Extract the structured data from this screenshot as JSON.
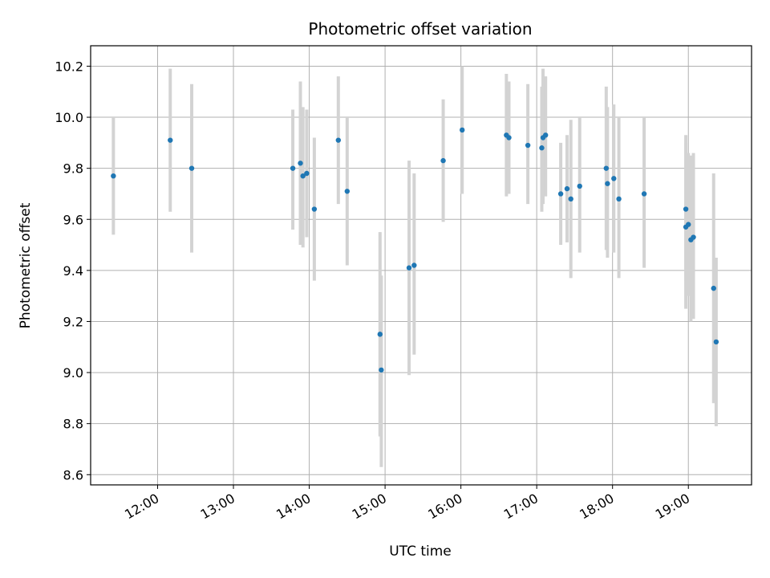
{
  "chart_data": {
    "type": "scatter",
    "title": "Photometric offset variation",
    "xlabel": "UTC time",
    "ylabel": "Photometric offset",
    "x_ticks": [
      "12:00",
      "13:00",
      "14:00",
      "15:00",
      "16:00",
      "17:00",
      "18:00",
      "19:00"
    ],
    "y_ticks": [
      "8.6",
      "8.8",
      "9.0",
      "9.2",
      "9.4",
      "9.6",
      "9.8",
      "10.0",
      "10.2"
    ],
    "xlim": [
      "11:07",
      "19:50"
    ],
    "ylim": [
      8.56,
      10.28
    ],
    "grid": true,
    "colors": {
      "point": "#1f77b4",
      "errorbar": "#d3d3d3",
      "grid": "#b0b0b0"
    },
    "points": [
      {
        "t": "11:25",
        "y": 9.77,
        "lo": 9.54,
        "hi": 10.0
      },
      {
        "t": "12:10",
        "y": 9.91,
        "lo": 9.63,
        "hi": 10.19
      },
      {
        "t": "12:27",
        "y": 9.8,
        "lo": 9.47,
        "hi": 10.13
      },
      {
        "t": "13:47",
        "y": 9.8,
        "lo": 9.56,
        "hi": 10.03
      },
      {
        "t": "13:53",
        "y": 9.82,
        "lo": 9.5,
        "hi": 10.14
      },
      {
        "t": "13:55",
        "y": 9.77,
        "lo": 9.49,
        "hi": 10.04
      },
      {
        "t": "13:58",
        "y": 9.78,
        "lo": 9.53,
        "hi": 10.03
      },
      {
        "t": "14:04",
        "y": 9.64,
        "lo": 9.36,
        "hi": 9.92
      },
      {
        "t": "14:23",
        "y": 9.91,
        "lo": 9.66,
        "hi": 10.16
      },
      {
        "t": "14:30",
        "y": 9.71,
        "lo": 9.42,
        "hi": 10.0
      },
      {
        "t": "14:56",
        "y": 9.15,
        "lo": 8.75,
        "hi": 9.55
      },
      {
        "t": "14:57",
        "y": 9.01,
        "lo": 8.63,
        "hi": 9.38
      },
      {
        "t": "15:19",
        "y": 9.41,
        "lo": 8.99,
        "hi": 9.83
      },
      {
        "t": "15:23",
        "y": 9.42,
        "lo": 9.07,
        "hi": 9.78
      },
      {
        "t": "15:46",
        "y": 9.83,
        "lo": 9.59,
        "hi": 10.07
      },
      {
        "t": "16:01",
        "y": 9.95,
        "lo": 9.7,
        "hi": 10.2
      },
      {
        "t": "16:36",
        "y": 9.93,
        "lo": 9.69,
        "hi": 10.17
      },
      {
        "t": "16:38",
        "y": 9.92,
        "lo": 9.7,
        "hi": 10.14
      },
      {
        "t": "16:53",
        "y": 9.89,
        "lo": 9.66,
        "hi": 10.13
      },
      {
        "t": "17:04",
        "y": 9.88,
        "lo": 9.63,
        "hi": 10.12
      },
      {
        "t": "17:05",
        "y": 9.92,
        "lo": 9.66,
        "hi": 10.19
      },
      {
        "t": "17:07",
        "y": 9.93,
        "lo": 9.69,
        "hi": 10.16
      },
      {
        "t": "17:19",
        "y": 9.7,
        "lo": 9.5,
        "hi": 9.9
      },
      {
        "t": "17:24",
        "y": 9.72,
        "lo": 9.51,
        "hi": 9.93
      },
      {
        "t": "17:27",
        "y": 9.68,
        "lo": 9.37,
        "hi": 9.99
      },
      {
        "t": "17:34",
        "y": 9.73,
        "lo": 9.47,
        "hi": 10.0
      },
      {
        "t": "17:55",
        "y": 9.8,
        "lo": 9.48,
        "hi": 10.12
      },
      {
        "t": "17:56",
        "y": 9.74,
        "lo": 9.45,
        "hi": 10.04
      },
      {
        "t": "18:01",
        "y": 9.76,
        "lo": 9.47,
        "hi": 10.05
      },
      {
        "t": "18:05",
        "y": 9.68,
        "lo": 9.37,
        "hi": 10.0
      },
      {
        "t": "18:25",
        "y": 9.7,
        "lo": 9.41,
        "hi": 10.0
      },
      {
        "t": "18:58",
        "y": 9.64,
        "lo": 9.36,
        "hi": 9.93
      },
      {
        "t": "18:58",
        "y": 9.57,
        "lo": 9.25,
        "hi": 9.9
      },
      {
        "t": "19:00",
        "y": 9.58,
        "lo": 9.3,
        "hi": 9.86
      },
      {
        "t": "19:02",
        "y": 9.52,
        "lo": 9.2,
        "hi": 9.85
      },
      {
        "t": "19:04",
        "y": 9.53,
        "lo": 9.21,
        "hi": 9.86
      },
      {
        "t": "19:20",
        "y": 9.33,
        "lo": 8.88,
        "hi": 9.78
      },
      {
        "t": "19:22",
        "y": 9.12,
        "lo": 8.79,
        "hi": 9.45
      }
    ]
  }
}
